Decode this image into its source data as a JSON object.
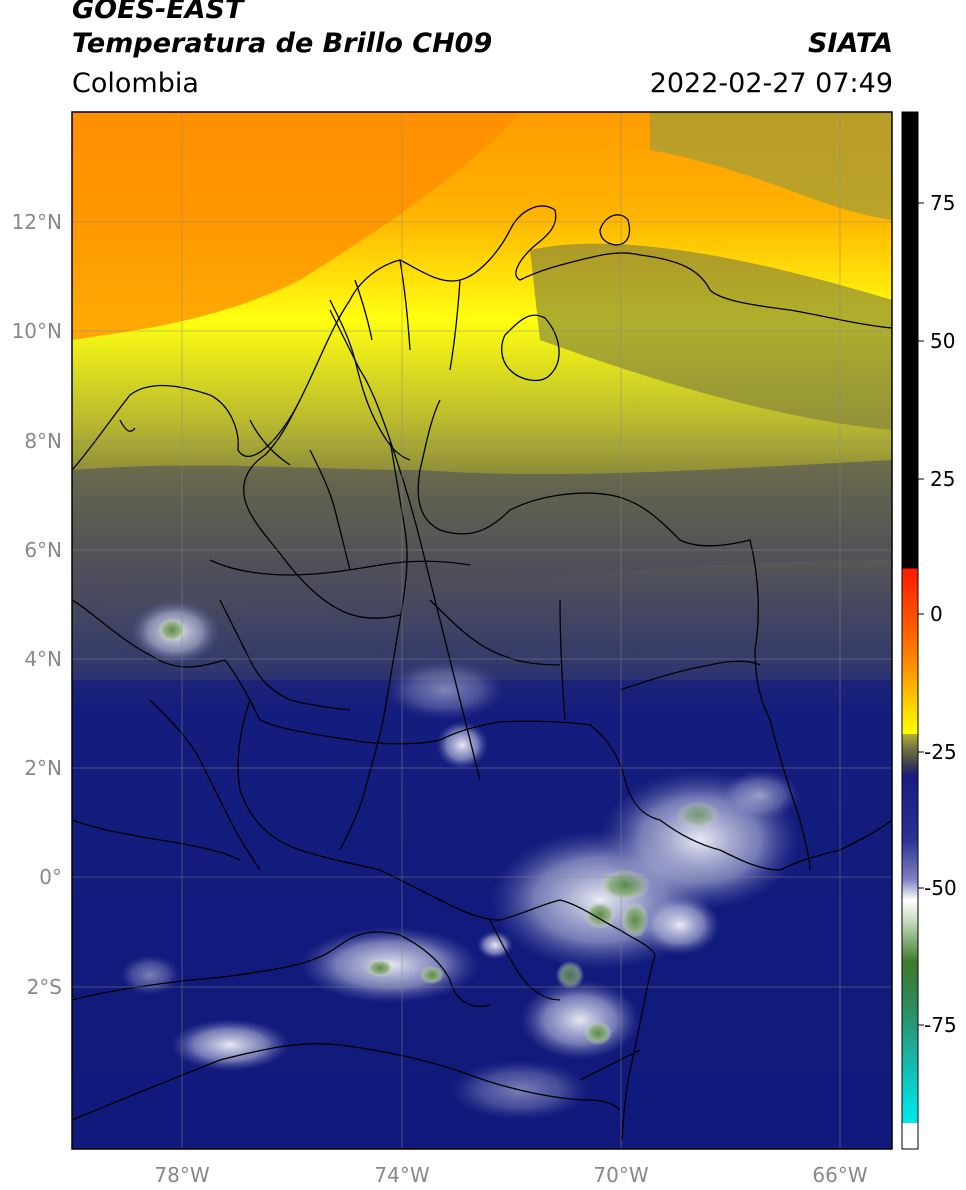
{
  "header": {
    "satellite": "GOES-EAST",
    "product": "Temperatura de Brillo CH09",
    "region": "Colombia",
    "organization": "SIATA",
    "timestamp": "2022-02-27 07:49"
  },
  "map": {
    "lon_ticks": [
      "78°W",
      "74°W",
      "70°W",
      "66°W"
    ],
    "lat_ticks": [
      "12°N",
      "10°N",
      "8°N",
      "6°N",
      "4°N",
      "2°N",
      "0°",
      "2°S"
    ]
  },
  "colorbar": {
    "tick_labels": [
      "75",
      "50",
      "25",
      "0",
      "-25",
      "-50",
      "-75"
    ],
    "colors": {
      "hot": "#000000",
      "red": "#ff1a00",
      "orange": "#ff8c00",
      "yellow": "#ffff00",
      "olive": "#7a7a3a",
      "gray": "#4a4a5a",
      "navy": "#10157e",
      "light": "#e8e8f4",
      "green": "#3f7f2f",
      "teal": "#1fb59a",
      "cyan": "#00e5e5"
    }
  }
}
